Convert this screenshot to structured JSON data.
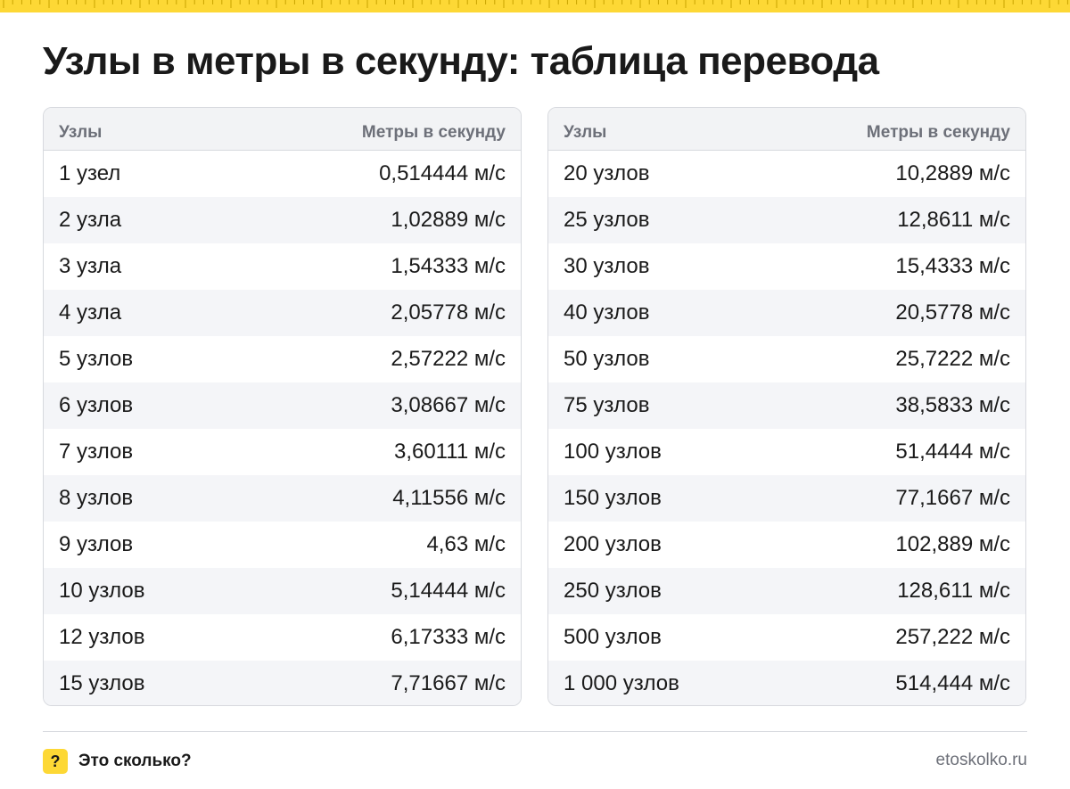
{
  "page": {
    "title": "Узлы в метры в секунду: таблица перевода"
  },
  "tables": [
    {
      "header": {
        "col1": "Узлы",
        "col2": "Метры в секунду"
      },
      "rows": [
        {
          "knots": "1 узел",
          "ms": "0,514444 м/с"
        },
        {
          "knots": "2 узла",
          "ms": "1,02889 м/с"
        },
        {
          "knots": "3 узла",
          "ms": "1,54333 м/с"
        },
        {
          "knots": "4 узла",
          "ms": "2,05778 м/с"
        },
        {
          "knots": "5 узлов",
          "ms": "2,57222 м/с"
        },
        {
          "knots": "6 узлов",
          "ms": "3,08667 м/с"
        },
        {
          "knots": "7 узлов",
          "ms": "3,60111 м/с"
        },
        {
          "knots": "8 узлов",
          "ms": "4,11556 м/с"
        },
        {
          "knots": "9 узлов",
          "ms": "4,63 м/с"
        },
        {
          "knots": "10 узлов",
          "ms": "5,14444 м/с"
        },
        {
          "knots": "12 узлов",
          "ms": "6,17333 м/с"
        },
        {
          "knots": "15 узлов",
          "ms": "7,71667 м/с"
        }
      ]
    },
    {
      "header": {
        "col1": "Узлы",
        "col2": "Метры в секунду"
      },
      "rows": [
        {
          "knots": "20 узлов",
          "ms": "10,2889 м/с"
        },
        {
          "knots": "25 узлов",
          "ms": "12,8611 м/с"
        },
        {
          "knots": "30 узлов",
          "ms": "15,4333 м/с"
        },
        {
          "knots": "40 узлов",
          "ms": "20,5778 м/с"
        },
        {
          "knots": "50 узлов",
          "ms": "25,7222 м/с"
        },
        {
          "knots": "75 узлов",
          "ms": "38,5833 м/с"
        },
        {
          "knots": "100 узлов",
          "ms": "51,4444 м/с"
        },
        {
          "knots": "150 узлов",
          "ms": "77,1667 м/с"
        },
        {
          "knots": "200 узлов",
          "ms": "102,889 м/с"
        },
        {
          "knots": "250 узлов",
          "ms": "128,611 м/с"
        },
        {
          "knots": "500 узлов",
          "ms": "257,222 м/с"
        },
        {
          "knots": "1 000 узлов",
          "ms": "514,444 м/с"
        }
      ]
    }
  ],
  "footer": {
    "logo_symbol": "?",
    "brand": "Это сколько?",
    "site": "etoskolko.ru"
  },
  "colors": {
    "accent": "#fdd835",
    "text": "#1a1a1a",
    "muted": "#6d7079",
    "stripe": "#f4f5f8",
    "border": "#d7d9de"
  }
}
